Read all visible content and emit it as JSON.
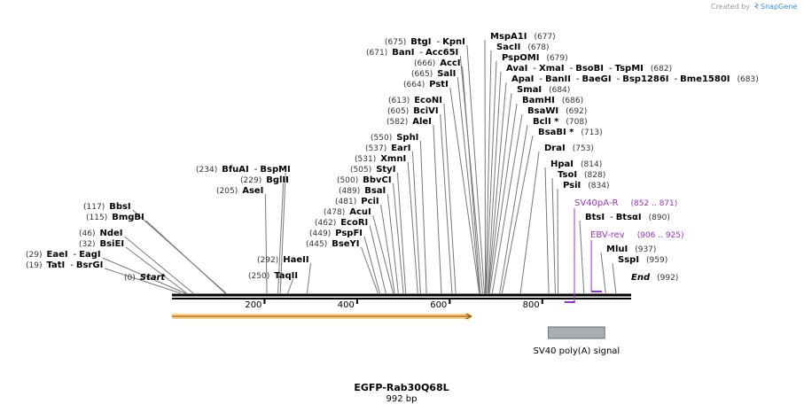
{
  "credit": {
    "prefix": "Created by",
    "brand": "SnapGene"
  },
  "plasmid": {
    "name": "EGFP-Rab30Q68L",
    "length": "992 bp",
    "bp": 992
  },
  "ruler": {
    "ticks": [
      {
        "value": 200,
        "label": "200"
      },
      {
        "value": 400,
        "label": "400"
      },
      {
        "value": 600,
        "label": "600"
      },
      {
        "value": 800,
        "label": "800"
      }
    ]
  },
  "ends": {
    "start": {
      "name": "Start",
      "pos": "(0)"
    },
    "end": {
      "name": "End",
      "pos": "(992)"
    }
  },
  "sites": [
    {
      "pos": "(19)",
      "bp": 19,
      "names": [
        "TatI",
        "BsrGI"
      ]
    },
    {
      "pos": "(29)",
      "bp": 29,
      "names": [
        "EaeI",
        "EagI"
      ]
    },
    {
      "pos": "(32)",
      "bp": 32,
      "names": [
        "BsiEI"
      ]
    },
    {
      "pos": "(46)",
      "bp": 46,
      "names": [
        "NdeI"
      ]
    },
    {
      "pos": "(115)",
      "bp": 115,
      "names": [
        "BmgBI"
      ]
    },
    {
      "pos": "(117)",
      "bp": 117,
      "names": [
        "BbsI"
      ]
    },
    {
      "pos": "(205)",
      "bp": 205,
      "names": [
        "AseI"
      ]
    },
    {
      "pos": "(229)",
      "bp": 229,
      "names": [
        "BglII"
      ]
    },
    {
      "pos": "(234)",
      "bp": 234,
      "names": [
        "BfuAI",
        "BspMI"
      ]
    },
    {
      "pos": "(250)",
      "bp": 250,
      "names": [
        "TaqII"
      ]
    },
    {
      "pos": "(292)",
      "bp": 292,
      "names": [
        "HaeII"
      ]
    },
    {
      "pos": "(445)",
      "bp": 445,
      "names": [
        "BseYI"
      ]
    },
    {
      "pos": "(449)",
      "bp": 449,
      "names": [
        "PspFI"
      ]
    },
    {
      "pos": "(462)",
      "bp": 462,
      "names": [
        "EcoRI"
      ]
    },
    {
      "pos": "(478)",
      "bp": 478,
      "names": [
        "AcuI"
      ]
    },
    {
      "pos": "(481)",
      "bp": 481,
      "names": [
        "PciI"
      ]
    },
    {
      "pos": "(489)",
      "bp": 489,
      "names": [
        "BsaI"
      ]
    },
    {
      "pos": "(500)",
      "bp": 500,
      "names": [
        "BbvCI"
      ]
    },
    {
      "pos": "(505)",
      "bp": 505,
      "names": [
        "StyI"
      ]
    },
    {
      "pos": "(531)",
      "bp": 531,
      "names": [
        "XmnI"
      ]
    },
    {
      "pos": "(537)",
      "bp": 537,
      "names": [
        "EarI"
      ]
    },
    {
      "pos": "(550)",
      "bp": 550,
      "names": [
        "SphI"
      ]
    },
    {
      "pos": "(582)",
      "bp": 582,
      "names": [
        "AleI"
      ]
    },
    {
      "pos": "(605)",
      "bp": 605,
      "names": [
        "BciVI"
      ]
    },
    {
      "pos": "(613)",
      "bp": 613,
      "names": [
        "EcoNI"
      ]
    },
    {
      "pos": "(664)",
      "bp": 664,
      "names": [
        "PstI"
      ]
    },
    {
      "pos": "(665)",
      "bp": 665,
      "names": [
        "SalI"
      ]
    },
    {
      "pos": "(666)",
      "bp": 666,
      "names": [
        "AccI"
      ]
    },
    {
      "pos": "(671)",
      "bp": 671,
      "names": [
        "BanI",
        "Acc65I"
      ]
    },
    {
      "pos": "(675)",
      "bp": 675,
      "names": [
        "BtgI",
        "KpnI"
      ]
    },
    {
      "pos": "(677)",
      "bp": 677,
      "names": [
        "MspA1I"
      ]
    },
    {
      "pos": "(678)",
      "bp": 678,
      "names": [
        "SacII"
      ]
    },
    {
      "pos": "(679)",
      "bp": 679,
      "names": [
        "PspOMI"
      ]
    },
    {
      "pos": "(682)",
      "bp": 682,
      "names": [
        "AvaI",
        "XmaI",
        "BsoBI",
        "TspMI"
      ]
    },
    {
      "pos": "(683)",
      "bp": 683,
      "names": [
        "ApaI",
        "BanII",
        "BaeGI",
        "Bsp1286I",
        "Bme1580I"
      ]
    },
    {
      "pos": "(684)",
      "bp": 684,
      "names": [
        "SmaI"
      ]
    },
    {
      "pos": "(686)",
      "bp": 686,
      "names": [
        "BamHI"
      ]
    },
    {
      "pos": "(692)",
      "bp": 692,
      "names": [
        "BsaWI"
      ]
    },
    {
      "pos": "(708)",
      "bp": 708,
      "names": [
        "BclI *"
      ]
    },
    {
      "pos": "(713)",
      "bp": 713,
      "names": [
        "BsaBI *"
      ]
    },
    {
      "pos": "(753)",
      "bp": 753,
      "names": [
        "DraI"
      ]
    },
    {
      "pos": "(814)",
      "bp": 814,
      "names": [
        "HpaI"
      ]
    },
    {
      "pos": "(828)",
      "bp": 828,
      "names": [
        "TsoI"
      ]
    },
    {
      "pos": "(834)",
      "bp": 834,
      "names": [
        "PsiI"
      ]
    },
    {
      "pos": "(890)",
      "bp": 890,
      "names": [
        "BtsI",
        "BtsαI"
      ]
    },
    {
      "pos": "(937)",
      "bp": 937,
      "names": [
        "MluI"
      ]
    },
    {
      "pos": "(959)",
      "bp": 959,
      "names": [
        "SspI"
      ]
    }
  ],
  "primers": [
    {
      "name": "SV40pA-R",
      "range": "(852 .. 871)",
      "start": 852,
      "end": 871,
      "direction": "reverse"
    },
    {
      "name": "EBV-rev",
      "range": "(906 .. 925)",
      "start": 906,
      "end": 925,
      "direction": "forward"
    }
  ],
  "features": [
    {
      "name": "",
      "start": 0,
      "end": 650,
      "type": "arrow",
      "color": "#f5a623"
    },
    {
      "name": "SV40 poly(A) signal",
      "start": 813,
      "end": 935,
      "type": "box",
      "color": "#a9aeb4"
    }
  ],
  "colors": {
    "primer": "#9b30c8",
    "backbone": "#000000",
    "label_line": "#777777",
    "feature_arrow": "#f5a623",
    "feature_box": "#a9aeb4"
  }
}
